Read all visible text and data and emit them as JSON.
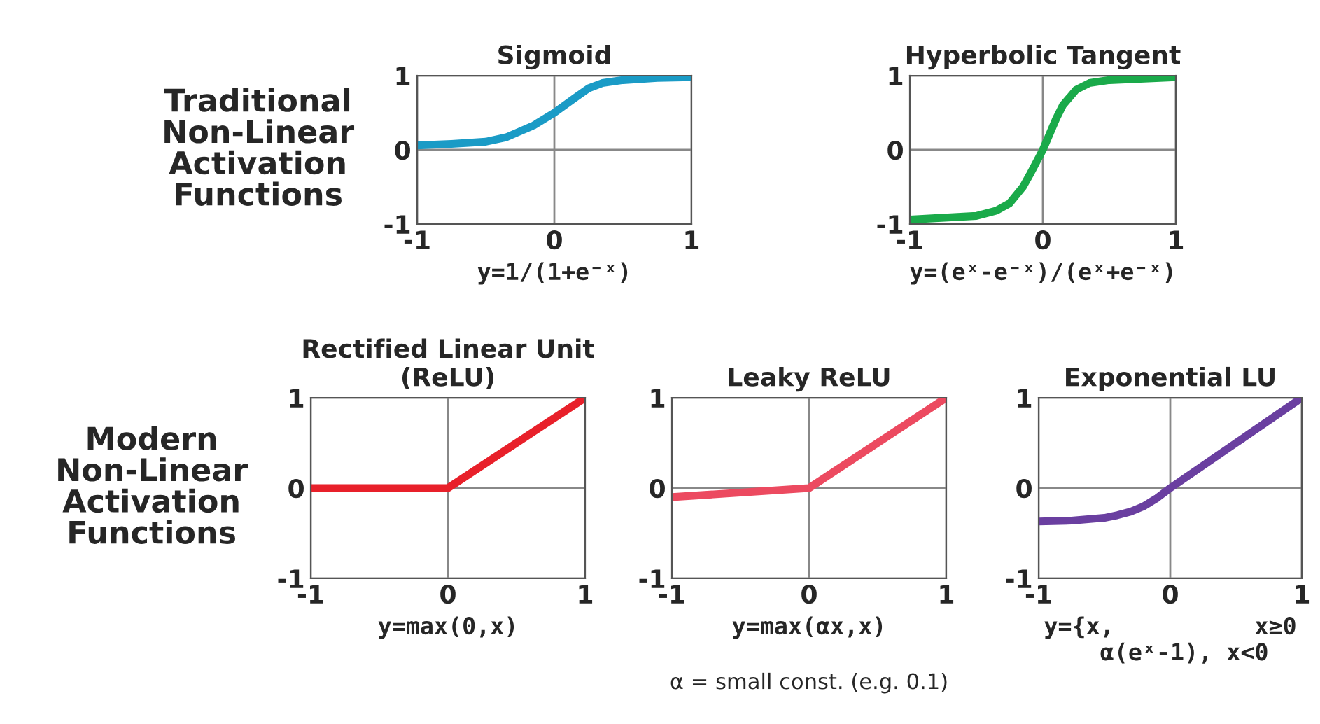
{
  "chart_data": [
    {
      "type": "line",
      "title": "Sigmoid",
      "xlabel": "y=1/(1+e⁻ˣ)",
      "annotations": [
        "Traditional\nNon-Linear\nActivation\nFunctions"
      ],
      "xlim": [
        -1,
        1
      ],
      "ylim": [
        -1,
        1
      ],
      "xticks": [
        -1,
        0,
        1
      ],
      "yticks": [
        -1,
        0,
        1
      ],
      "grid": true,
      "series": [
        {
          "color": "#1a9bc6",
          "x": [
            -1,
            -0.75,
            -0.5,
            -0.35,
            -0.25,
            -0.15,
            0,
            0.15,
            0.25,
            0.35,
            0.5,
            0.75,
            1
          ],
          "values": [
            0.06,
            0.08,
            0.11,
            0.17,
            0.25,
            0.33,
            0.5,
            0.7,
            0.83,
            0.9,
            0.94,
            0.97,
            0.98
          ]
        }
      ]
    },
    {
      "type": "line",
      "title": "Hyperbolic Tangent",
      "xlabel": "y=(eˣ-e⁻ˣ)/(eˣ+e⁻ˣ)",
      "xlim": [
        -1,
        1
      ],
      "ylim": [
        -1,
        1
      ],
      "xticks": [
        -1,
        0,
        1
      ],
      "yticks": [
        -1,
        0,
        1
      ],
      "grid": true,
      "series": [
        {
          "color": "#1aaa4a",
          "x": [
            -1,
            -0.5,
            -0.35,
            -0.25,
            -0.15,
            -0.1,
            0,
            0.1,
            0.15,
            0.25,
            0.35,
            0.5,
            1
          ],
          "values": [
            -0.94,
            -0.89,
            -0.82,
            -0.72,
            -0.5,
            -0.34,
            0,
            0.42,
            0.6,
            0.81,
            0.9,
            0.94,
            0.98
          ]
        }
      ]
    },
    {
      "type": "line",
      "title": "Rectified Linear Unit\n(ReLU)",
      "xlabel": "y=max(0,x)",
      "annotations": [
        "Modern\nNon-Linear\nActivation\nFunctions"
      ],
      "xlim": [
        -1,
        1
      ],
      "ylim": [
        -1,
        1
      ],
      "xticks": [
        -1,
        0,
        1
      ],
      "yticks": [
        -1,
        0,
        1
      ],
      "grid": true,
      "series": [
        {
          "color": "#e8202a",
          "x": [
            -1,
            0,
            1
          ],
          "values": [
            0,
            0,
            1
          ]
        }
      ]
    },
    {
      "type": "line",
      "title": "Leaky ReLU",
      "xlabel": "y=max(αx,x)",
      "annotations": [
        "α = small const. (e.g. 0.1)"
      ],
      "xlim": [
        -1,
        1
      ],
      "ylim": [
        -1,
        1
      ],
      "xticks": [
        -1,
        0,
        1
      ],
      "yticks": [
        -1,
        0,
        1
      ],
      "grid": true,
      "series": [
        {
          "color": "#ec4a60",
          "x": [
            -1,
            0,
            1
          ],
          "values": [
            -0.1,
            0,
            1
          ]
        }
      ]
    },
    {
      "type": "line",
      "title": "Exponential LU",
      "xlabel": "y={x,          x≥0\n  α(eˣ-1), x<0",
      "xlim": [
        -1,
        1
      ],
      "ylim": [
        -1,
        1
      ],
      "xticks": [
        -1,
        0,
        1
      ],
      "yticks": [
        -1,
        0,
        1
      ],
      "grid": true,
      "series": [
        {
          "color": "#6a3fa0",
          "x": [
            -1,
            -0.75,
            -0.5,
            -0.4,
            -0.3,
            -0.2,
            -0.1,
            0,
            0.5,
            1
          ],
          "values": [
            -0.37,
            -0.36,
            -0.33,
            -0.3,
            -0.26,
            -0.2,
            -0.11,
            0,
            0.5,
            1
          ]
        }
      ]
    }
  ]
}
